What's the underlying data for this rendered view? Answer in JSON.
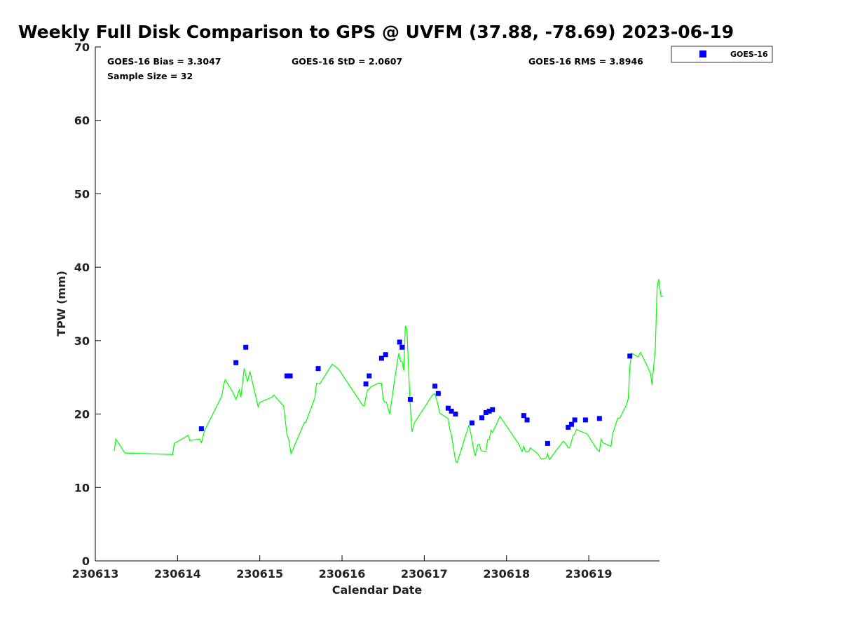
{
  "chart_data": {
    "type": "scatter",
    "title": "Weekly Full Disk Comparison to GPS @ UVFM (37.88, -78.69) 2023-06-19",
    "xlabel": "Calendar Date",
    "ylabel": "TPW (mm)",
    "xlim": [
      230613,
      230619.86
    ],
    "ylim": [
      0,
      70
    ],
    "x_ticks": [
      230613,
      230614,
      230615,
      230616,
      230617,
      230618,
      230619
    ],
    "x_tick_labels": [
      "230613",
      "230614",
      "230615",
      "230616",
      "230617",
      "230618",
      "230619"
    ],
    "y_ticks": [
      0,
      10,
      20,
      30,
      40,
      50,
      60,
      70
    ],
    "y_tick_labels": [
      "0",
      "10",
      "20",
      "30",
      "40",
      "50",
      "60",
      "70"
    ],
    "stats": {
      "bias": "GOES-16 Bias = 3.3047",
      "std": "GOES-16 StD = 2.0607",
      "rms": "GOES-16 RMS = 3.8946",
      "sample": "Sample Size = 32"
    },
    "legend": {
      "position": "top-right-outside",
      "label": "GOES-16"
    },
    "grid": false,
    "series": [
      {
        "name": "GOES-16",
        "kind": "scatter",
        "color": "#0000ff",
        "points": [
          [
            230614.29,
            18.0
          ],
          [
            230614.71,
            27.0
          ],
          [
            230614.83,
            29.1
          ],
          [
            230615.33,
            25.2
          ],
          [
            230615.37,
            25.2
          ],
          [
            230615.71,
            26.2
          ],
          [
            230616.29,
            24.1
          ],
          [
            230616.33,
            25.2
          ],
          [
            230616.48,
            27.6
          ],
          [
            230616.53,
            28.1
          ],
          [
            230616.7,
            29.8
          ],
          [
            230616.73,
            29.1
          ],
          [
            230616.83,
            22.0
          ],
          [
            230617.13,
            23.8
          ],
          [
            230617.17,
            22.8
          ],
          [
            230617.29,
            20.8
          ],
          [
            230617.33,
            20.4
          ],
          [
            230617.38,
            20.0
          ],
          [
            230617.58,
            18.8
          ],
          [
            230617.7,
            19.5
          ],
          [
            230617.75,
            20.2
          ],
          [
            230617.79,
            20.4
          ],
          [
            230617.83,
            20.6
          ],
          [
            230618.21,
            19.8
          ],
          [
            230618.25,
            19.2
          ],
          [
            230618.5,
            16.0
          ],
          [
            230618.75,
            18.2
          ],
          [
            230618.79,
            18.6
          ],
          [
            230618.83,
            19.2
          ],
          [
            230618.96,
            19.2
          ],
          [
            230619.13,
            19.4
          ],
          [
            230619.5,
            27.9
          ]
        ]
      },
      {
        "kind": "line",
        "color": "#00ff00",
        "points": [
          [
            230613.23,
            15.0
          ],
          [
            230613.25,
            16.6
          ],
          [
            230613.36,
            14.7
          ],
          [
            230613.94,
            14.5
          ],
          [
            230613.96,
            16.0
          ],
          [
            230614.13,
            17.1
          ],
          [
            230614.15,
            16.4
          ],
          [
            230614.27,
            16.6
          ],
          [
            230614.29,
            16.1
          ],
          [
            230614.33,
            17.8
          ],
          [
            230614.54,
            22.5
          ],
          [
            230614.56,
            24.0
          ],
          [
            230614.58,
            24.7
          ],
          [
            230614.67,
            23.0
          ],
          [
            230614.71,
            22.0
          ],
          [
            230614.75,
            23.3
          ],
          [
            230614.77,
            22.3
          ],
          [
            230614.81,
            26.2
          ],
          [
            230614.85,
            24.4
          ],
          [
            230614.88,
            25.8
          ],
          [
            230614.98,
            21.0
          ],
          [
            230615.0,
            21.6
          ],
          [
            230615.15,
            22.3
          ],
          [
            230615.17,
            22.6
          ],
          [
            230615.29,
            21.1
          ],
          [
            230615.33,
            17.2
          ],
          [
            230615.35,
            16.6
          ],
          [
            230615.38,
            14.6
          ],
          [
            230615.54,
            18.8
          ],
          [
            230615.56,
            18.9
          ],
          [
            230615.67,
            22.2
          ],
          [
            230615.69,
            24.2
          ],
          [
            230615.73,
            24.1
          ],
          [
            230615.88,
            26.8
          ],
          [
            230615.96,
            26.1
          ],
          [
            230616.25,
            21.2
          ],
          [
            230616.27,
            21.1
          ],
          [
            230616.31,
            23.3
          ],
          [
            230616.33,
            23.4
          ],
          [
            230616.35,
            23.7
          ],
          [
            230616.44,
            24.2
          ],
          [
            230616.48,
            24.2
          ],
          [
            230616.5,
            22.0
          ],
          [
            230616.52,
            21.6
          ],
          [
            230616.54,
            21.6
          ],
          [
            230616.58,
            20.0
          ],
          [
            230616.65,
            25.5
          ],
          [
            230616.69,
            28.3
          ],
          [
            230616.71,
            27.2
          ],
          [
            230616.73,
            27.2
          ],
          [
            230616.75,
            25.9
          ],
          [
            230616.77,
            32.0
          ],
          [
            230616.79,
            31.5
          ],
          [
            230616.81,
            25.8
          ],
          [
            230616.83,
            21.1
          ],
          [
            230616.85,
            17.6
          ],
          [
            230616.88,
            18.8
          ],
          [
            230617.1,
            22.6
          ],
          [
            230617.13,
            22.8
          ],
          [
            230617.15,
            22.0
          ],
          [
            230617.19,
            20.1
          ],
          [
            230617.29,
            19.4
          ],
          [
            230617.31,
            17.9
          ],
          [
            230617.33,
            17.2
          ],
          [
            230617.38,
            13.6
          ],
          [
            230617.4,
            13.4
          ],
          [
            230617.54,
            18.4
          ],
          [
            230617.56,
            17.7
          ],
          [
            230617.6,
            15.2
          ],
          [
            230617.62,
            14.3
          ],
          [
            230617.65,
            15.8
          ],
          [
            230617.67,
            15.9
          ],
          [
            230617.69,
            15.0
          ],
          [
            230617.75,
            14.9
          ],
          [
            230617.77,
            16.5
          ],
          [
            230617.79,
            16.5
          ],
          [
            230617.81,
            17.8
          ],
          [
            230617.83,
            17.5
          ],
          [
            230617.88,
            18.7
          ],
          [
            230617.92,
            19.7
          ],
          [
            230618.15,
            15.9
          ],
          [
            230618.19,
            14.9
          ],
          [
            230618.21,
            15.6
          ],
          [
            230618.23,
            14.9
          ],
          [
            230618.27,
            14.9
          ],
          [
            230618.29,
            15.4
          ],
          [
            230618.38,
            14.6
          ],
          [
            230618.42,
            13.9
          ],
          [
            230618.48,
            14.0
          ],
          [
            230618.5,
            14.6
          ],
          [
            230618.52,
            13.8
          ],
          [
            230618.69,
            16.3
          ],
          [
            230618.71,
            16.1
          ],
          [
            230618.75,
            15.4
          ],
          [
            230618.77,
            15.5
          ],
          [
            230618.81,
            17.1
          ],
          [
            230618.83,
            17.3
          ],
          [
            230618.85,
            17.9
          ],
          [
            230618.98,
            17.3
          ],
          [
            230619.1,
            15.2
          ],
          [
            230619.13,
            14.9
          ],
          [
            230619.15,
            16.6
          ],
          [
            230619.17,
            16.1
          ],
          [
            230619.27,
            15.6
          ],
          [
            230619.29,
            17.3
          ],
          [
            230619.35,
            19.4
          ],
          [
            230619.38,
            19.5
          ],
          [
            230619.46,
            21.3
          ],
          [
            230619.48,
            22.1
          ],
          [
            230619.5,
            26.5
          ],
          [
            230619.52,
            28.3
          ],
          [
            230619.6,
            27.8
          ],
          [
            230619.63,
            28.4
          ],
          [
            230619.75,
            25.6
          ],
          [
            230619.77,
            24.0
          ],
          [
            230619.81,
            29.0
          ],
          [
            230619.83,
            37.0
          ],
          [
            230619.85,
            38.4
          ],
          [
            230619.88,
            36.0
          ],
          [
            230619.9,
            36.1
          ]
        ]
      }
    ]
  }
}
